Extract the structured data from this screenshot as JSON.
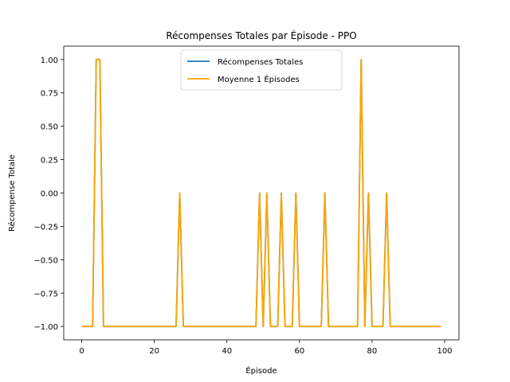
{
  "chart_data": {
    "type": "line",
    "title": "Récompenses Totales par Épisode - PPO",
    "xlabel": "Épisode",
    "ylabel": "Récompense Totale",
    "xlim": [
      -4.95,
      103.95
    ],
    "ylim": [
      -1.1,
      1.1
    ],
    "xticks": [
      0,
      20,
      40,
      60,
      80,
      100
    ],
    "xtick_labels": [
      "0",
      "20",
      "40",
      "60",
      "80",
      "100"
    ],
    "yticks": [
      -1.0,
      -0.75,
      -0.5,
      -0.25,
      0.0,
      0.25,
      0.5,
      0.75,
      1.0
    ],
    "ytick_labels": [
      "−1.00",
      "−0.75",
      "−0.50",
      "−0.25",
      "0.00",
      "0.25",
      "0.50",
      "0.75",
      "1.00"
    ],
    "grid": false,
    "legend_position": "top-center",
    "x": [
      0,
      1,
      2,
      3,
      4,
      5,
      6,
      7,
      8,
      9,
      10,
      11,
      12,
      13,
      14,
      15,
      16,
      17,
      18,
      19,
      20,
      21,
      22,
      23,
      24,
      25,
      26,
      27,
      28,
      29,
      30,
      31,
      32,
      33,
      34,
      35,
      36,
      37,
      38,
      39,
      40,
      41,
      42,
      43,
      44,
      45,
      46,
      47,
      48,
      49,
      50,
      51,
      52,
      53,
      54,
      55,
      56,
      57,
      58,
      59,
      60,
      61,
      62,
      63,
      64,
      65,
      66,
      67,
      68,
      69,
      70,
      71,
      72,
      73,
      74,
      75,
      76,
      77,
      78,
      79,
      80,
      81,
      82,
      83,
      84,
      85,
      86,
      87,
      88,
      89,
      90,
      91,
      92,
      93,
      94,
      95,
      96,
      97,
      98,
      99
    ],
    "series": [
      {
        "name": "Récompenses Totales",
        "color": "#1f77b4",
        "values": [
          -1,
          -1,
          -1,
          -1,
          1,
          1,
          -1,
          -1,
          -1,
          -1,
          -1,
          -1,
          -1,
          -1,
          -1,
          -1,
          -1,
          -1,
          -1,
          -1,
          -1,
          -1,
          -1,
          -1,
          -1,
          -1,
          -1,
          0,
          -1,
          -1,
          -1,
          -1,
          -1,
          -1,
          -1,
          -1,
          -1,
          -1,
          -1,
          -1,
          -1,
          -1,
          -1,
          -1,
          -1,
          -1,
          -1,
          -1,
          -1,
          0,
          -1,
          0,
          -1,
          -1,
          -1,
          0,
          -1,
          -1,
          -1,
          0,
          -1,
          -1,
          -1,
          -1,
          -1,
          -1,
          -1,
          0,
          -1,
          -1,
          -1,
          -1,
          -1,
          -1,
          -1,
          -1,
          -1,
          1,
          -1,
          0,
          -1,
          -1,
          -1,
          -1,
          0,
          -1,
          -1,
          -1,
          -1,
          -1,
          -1,
          -1,
          -1,
          -1,
          -1,
          -1,
          -1,
          -1,
          -1,
          -1
        ]
      },
      {
        "name": "Moyenne 1 Épisodes",
        "color": "#ffa500",
        "values": [
          -1,
          -1,
          -1,
          -1,
          1,
          1,
          -1,
          -1,
          -1,
          -1,
          -1,
          -1,
          -1,
          -1,
          -1,
          -1,
          -1,
          -1,
          -1,
          -1,
          -1,
          -1,
          -1,
          -1,
          -1,
          -1,
          -1,
          0,
          -1,
          -1,
          -1,
          -1,
          -1,
          -1,
          -1,
          -1,
          -1,
          -1,
          -1,
          -1,
          -1,
          -1,
          -1,
          -1,
          -1,
          -1,
          -1,
          -1,
          -1,
          0,
          -1,
          0,
          -1,
          -1,
          -1,
          0,
          -1,
          -1,
          -1,
          0,
          -1,
          -1,
          -1,
          -1,
          -1,
          -1,
          -1,
          0,
          -1,
          -1,
          -1,
          -1,
          -1,
          -1,
          -1,
          -1,
          -1,
          1,
          -1,
          0,
          -1,
          -1,
          -1,
          -1,
          0,
          -1,
          -1,
          -1,
          -1,
          -1,
          -1,
          -1,
          -1,
          -1,
          -1,
          -1,
          -1,
          -1,
          -1,
          -1
        ]
      }
    ]
  }
}
